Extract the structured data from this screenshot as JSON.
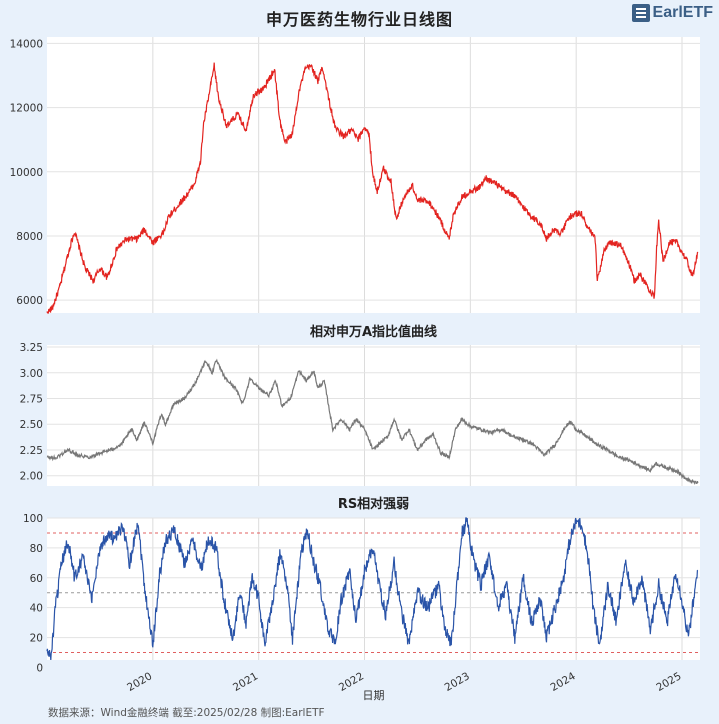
{
  "title": "申万医药生物行业日线图",
  "logo": {
    "text": "EarlETF"
  },
  "footer": "数据来源：Wind金融终端 截至:2025/02/28 制图:EarlETF",
  "chart_data": [
    {
      "type": "line",
      "title": "申万医药生物行业日线图",
      "ylim": [
        5600,
        14200
      ],
      "yticks": [
        6000,
        8000,
        10000,
        12000,
        14000
      ],
      "color": "#e32420",
      "grid": true,
      "keypoints": [
        [
          2019.0,
          5600
        ],
        [
          2019.05,
          5750
        ],
        [
          2019.12,
          6400
        ],
        [
          2019.22,
          7700
        ],
        [
          2019.26,
          8150
        ],
        [
          2019.36,
          7000
        ],
        [
          2019.44,
          6600
        ],
        [
          2019.5,
          7000
        ],
        [
          2019.57,
          6700
        ],
        [
          2019.66,
          7600
        ],
        [
          2019.75,
          7900
        ],
        [
          2019.85,
          7900
        ],
        [
          2019.92,
          8200
        ],
        [
          2020.0,
          7800
        ],
        [
          2020.1,
          8100
        ],
        [
          2020.15,
          8600
        ],
        [
          2020.2,
          8800
        ],
        [
          2020.3,
          9200
        ],
        [
          2020.35,
          9400
        ],
        [
          2020.4,
          9700
        ],
        [
          2020.45,
          10300
        ],
        [
          2020.48,
          11500
        ],
        [
          2020.52,
          12200
        ],
        [
          2020.58,
          13300
        ],
        [
          2020.62,
          12300
        ],
        [
          2020.7,
          11400
        ],
        [
          2020.8,
          11800
        ],
        [
          2020.88,
          11300
        ],
        [
          2020.95,
          12400
        ],
        [
          2021.05,
          12600
        ],
        [
          2021.15,
          13200
        ],
        [
          2021.2,
          11600
        ],
        [
          2021.25,
          10900
        ],
        [
          2021.32,
          11200
        ],
        [
          2021.38,
          12500
        ],
        [
          2021.44,
          13200
        ],
        [
          2021.5,
          13300
        ],
        [
          2021.56,
          12800
        ],
        [
          2021.6,
          13300
        ],
        [
          2021.66,
          12300
        ],
        [
          2021.72,
          11400
        ],
        [
          2021.8,
          11100
        ],
        [
          2021.88,
          11300
        ],
        [
          2021.94,
          11000
        ],
        [
          2022.0,
          11400
        ],
        [
          2022.04,
          11200
        ],
        [
          2022.08,
          9900
        ],
        [
          2022.12,
          9400
        ],
        [
          2022.18,
          10100
        ],
        [
          2022.25,
          9700
        ],
        [
          2022.3,
          8500
        ],
        [
          2022.36,
          9100
        ],
        [
          2022.45,
          9600
        ],
        [
          2022.5,
          9100
        ],
        [
          2022.6,
          9100
        ],
        [
          2022.7,
          8600
        ],
        [
          2022.8,
          7900
        ],
        [
          2022.84,
          8700
        ],
        [
          2022.92,
          9200
        ],
        [
          2023.0,
          9400
        ],
        [
          2023.08,
          9500
        ],
        [
          2023.15,
          9800
        ],
        [
          2023.25,
          9600
        ],
        [
          2023.32,
          9400
        ],
        [
          2023.4,
          9300
        ],
        [
          2023.5,
          8900
        ],
        [
          2023.58,
          8600
        ],
        [
          2023.66,
          8400
        ],
        [
          2023.72,
          7900
        ],
        [
          2023.78,
          8200
        ],
        [
          2023.86,
          8100
        ],
        [
          2023.94,
          8600
        ],
        [
          2024.0,
          8700
        ],
        [
          2024.05,
          8700
        ],
        [
          2024.1,
          8300
        ],
        [
          2024.18,
          7900
        ],
        [
          2024.2,
          6600
        ],
        [
          2024.26,
          7500
        ],
        [
          2024.32,
          7800
        ],
        [
          2024.42,
          7700
        ],
        [
          2024.48,
          7300
        ],
        [
          2024.55,
          6600
        ],
        [
          2024.6,
          6800
        ],
        [
          2024.68,
          6400
        ],
        [
          2024.74,
          6100
        ],
        [
          2024.76,
          7600
        ],
        [
          2024.78,
          8500
        ],
        [
          2024.82,
          7200
        ],
        [
          2024.88,
          7800
        ],
        [
          2024.95,
          7800
        ],
        [
          2025.0,
          7500
        ],
        [
          2025.05,
          7200
        ],
        [
          2025.08,
          6900
        ],
        [
          2025.1,
          6700
        ],
        [
          2025.12,
          7100
        ],
        [
          2025.15,
          7500
        ]
      ]
    },
    {
      "type": "line",
      "title": "相对申万A指比值曲线",
      "ylim": [
        1.9,
        3.27
      ],
      "yticks": [
        2.0,
        2.25,
        2.5,
        2.75,
        3.0,
        3.25
      ],
      "color": "#777777",
      "grid": true,
      "keypoints": [
        [
          2019.0,
          2.18
        ],
        [
          2019.08,
          2.17
        ],
        [
          2019.2,
          2.25
        ],
        [
          2019.3,
          2.2
        ],
        [
          2019.4,
          2.18
        ],
        [
          2019.5,
          2.22
        ],
        [
          2019.6,
          2.25
        ],
        [
          2019.7,
          2.3
        ],
        [
          2019.8,
          2.45
        ],
        [
          2019.85,
          2.35
        ],
        [
          2019.92,
          2.52
        ],
        [
          2020.0,
          2.32
        ],
        [
          2020.08,
          2.6
        ],
        [
          2020.12,
          2.5
        ],
        [
          2020.2,
          2.7
        ],
        [
          2020.3,
          2.75
        ],
        [
          2020.4,
          2.9
        ],
        [
          2020.5,
          3.12
        ],
        [
          2020.56,
          3.0
        ],
        [
          2020.6,
          3.12
        ],
        [
          2020.68,
          2.95
        ],
        [
          2020.78,
          2.85
        ],
        [
          2020.85,
          2.7
        ],
        [
          2020.92,
          2.95
        ],
        [
          2021.0,
          2.85
        ],
        [
          2021.1,
          2.78
        ],
        [
          2021.16,
          2.92
        ],
        [
          2021.22,
          2.68
        ],
        [
          2021.3,
          2.75
        ],
        [
          2021.38,
          3.02
        ],
        [
          2021.45,
          2.92
        ],
        [
          2021.52,
          3.02
        ],
        [
          2021.56,
          2.85
        ],
        [
          2021.62,
          2.92
        ],
        [
          2021.7,
          2.45
        ],
        [
          2021.78,
          2.55
        ],
        [
          2021.86,
          2.45
        ],
        [
          2021.92,
          2.55
        ],
        [
          2022.0,
          2.45
        ],
        [
          2022.08,
          2.25
        ],
        [
          2022.15,
          2.32
        ],
        [
          2022.22,
          2.38
        ],
        [
          2022.28,
          2.55
        ],
        [
          2022.35,
          2.35
        ],
        [
          2022.42,
          2.45
        ],
        [
          2022.5,
          2.25
        ],
        [
          2022.58,
          2.35
        ],
        [
          2022.65,
          2.4
        ],
        [
          2022.72,
          2.22
        ],
        [
          2022.8,
          2.18
        ],
        [
          2022.86,
          2.45
        ],
        [
          2022.92,
          2.55
        ],
        [
          2023.0,
          2.48
        ],
        [
          2023.1,
          2.45
        ],
        [
          2023.2,
          2.42
        ],
        [
          2023.3,
          2.45
        ],
        [
          2023.4,
          2.38
        ],
        [
          2023.5,
          2.35
        ],
        [
          2023.6,
          2.3
        ],
        [
          2023.7,
          2.2
        ],
        [
          2023.8,
          2.3
        ],
        [
          2023.9,
          2.48
        ],
        [
          2023.95,
          2.52
        ],
        [
          2024.0,
          2.45
        ],
        [
          2024.1,
          2.38
        ],
        [
          2024.2,
          2.3
        ],
        [
          2024.3,
          2.25
        ],
        [
          2024.4,
          2.18
        ],
        [
          2024.5,
          2.15
        ],
        [
          2024.6,
          2.1
        ],
        [
          2024.7,
          2.05
        ],
        [
          2024.75,
          2.12
        ],
        [
          2024.85,
          2.08
        ],
        [
          2024.95,
          2.05
        ],
        [
          2025.0,
          2.0
        ],
        [
          2025.05,
          1.96
        ],
        [
          2025.1,
          1.94
        ],
        [
          2025.15,
          1.93
        ]
      ]
    },
    {
      "type": "line",
      "title": "RS相对强弱",
      "xlabel": "日期",
      "ylim": [
        5,
        100
      ],
      "yticks": [
        0,
        20,
        40,
        60,
        80,
        100
      ],
      "xticks": [
        "2020",
        "2021",
        "2022",
        "2023",
        "2024",
        "2025"
      ],
      "color": "#2a54a8",
      "reference_lines": [
        90,
        50,
        10
      ],
      "grid": true,
      "keypoints": [
        [
          2019.0,
          10
        ],
        [
          2019.04,
          8
        ],
        [
          2019.08,
          40
        ],
        [
          2019.14,
          70
        ],
        [
          2019.2,
          85
        ],
        [
          2019.26,
          60
        ],
        [
          2019.34,
          75
        ],
        [
          2019.42,
          45
        ],
        [
          2019.5,
          80
        ],
        [
          2019.58,
          90
        ],
        [
          2019.64,
          85
        ],
        [
          2019.72,
          95
        ],
        [
          2019.78,
          70
        ],
        [
          2019.86,
          98
        ],
        [
          2019.92,
          55
        ],
        [
          2019.96,
          35
        ],
        [
          2020.0,
          15
        ],
        [
          2020.06,
          60
        ],
        [
          2020.12,
          85
        ],
        [
          2020.2,
          92
        ],
        [
          2020.3,
          70
        ],
        [
          2020.38,
          85
        ],
        [
          2020.46,
          65
        ],
        [
          2020.52,
          85
        ],
        [
          2020.6,
          80
        ],
        [
          2020.65,
          55
        ],
        [
          2020.7,
          35
        ],
        [
          2020.76,
          20
        ],
        [
          2020.82,
          50
        ],
        [
          2020.88,
          30
        ],
        [
          2020.94,
          60
        ],
        [
          2021.0,
          45
        ],
        [
          2021.06,
          15
        ],
        [
          2021.12,
          40
        ],
        [
          2021.2,
          75
        ],
        [
          2021.26,
          60
        ],
        [
          2021.32,
          20
        ],
        [
          2021.4,
          75
        ],
        [
          2021.46,
          92
        ],
        [
          2021.52,
          70
        ],
        [
          2021.58,
          55
        ],
        [
          2021.64,
          30
        ],
        [
          2021.72,
          15
        ],
        [
          2021.78,
          45
        ],
        [
          2021.86,
          65
        ],
        [
          2021.92,
          30
        ],
        [
          2022.0,
          65
        ],
        [
          2022.08,
          80
        ],
        [
          2022.14,
          55
        ],
        [
          2022.2,
          35
        ],
        [
          2022.28,
          70
        ],
        [
          2022.34,
          40
        ],
        [
          2022.42,
          15
        ],
        [
          2022.5,
          50
        ],
        [
          2022.6,
          40
        ],
        [
          2022.7,
          55
        ],
        [
          2022.76,
          25
        ],
        [
          2022.82,
          15
        ],
        [
          2022.88,
          60
        ],
        [
          2022.92,
          90
        ],
        [
          2022.97,
          98
        ],
        [
          2023.02,
          75
        ],
        [
          2023.1,
          55
        ],
        [
          2023.18,
          75
        ],
        [
          2023.26,
          40
        ],
        [
          2023.34,
          55
        ],
        [
          2023.42,
          20
        ],
        [
          2023.5,
          60
        ],
        [
          2023.58,
          30
        ],
        [
          2023.66,
          45
        ],
        [
          2023.72,
          20
        ],
        [
          2023.8,
          40
        ],
        [
          2023.88,
          60
        ],
        [
          2023.94,
          85
        ],
        [
          2024.0,
          98
        ],
        [
          2024.06,
          95
        ],
        [
          2024.12,
          70
        ],
        [
          2024.16,
          40
        ],
        [
          2024.22,
          15
        ],
        [
          2024.3,
          55
        ],
        [
          2024.38,
          30
        ],
        [
          2024.46,
          70
        ],
        [
          2024.54,
          45
        ],
        [
          2024.62,
          60
        ],
        [
          2024.7,
          25
        ],
        [
          2024.78,
          55
        ],
        [
          2024.86,
          30
        ],
        [
          2024.94,
          65
        ],
        [
          2025.0,
          45
        ],
        [
          2025.06,
          20
        ],
        [
          2025.12,
          50
        ],
        [
          2025.15,
          65
        ]
      ]
    }
  ]
}
